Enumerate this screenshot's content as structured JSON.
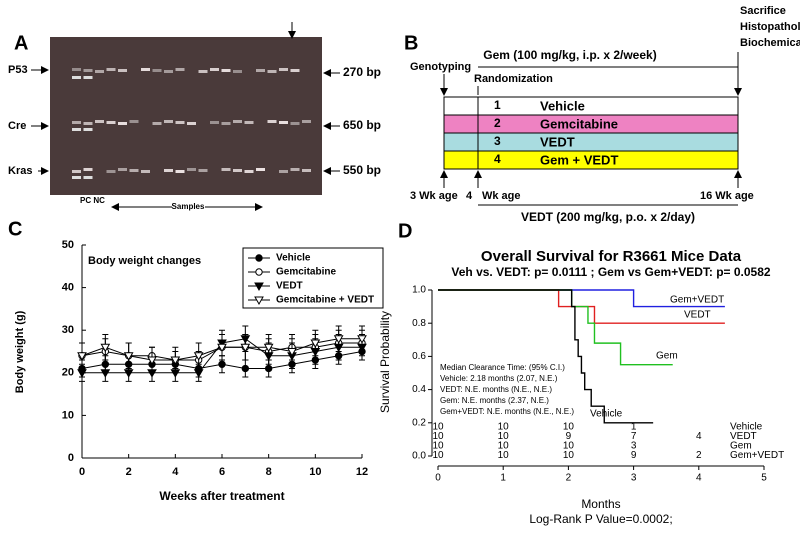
{
  "panel_a": {
    "letter": "A",
    "genes": [
      "P53",
      "Cre",
      "Kras"
    ],
    "sizes": [
      "270 bp",
      "650 bp",
      "550 bp"
    ],
    "controls": "PC NC",
    "samples": "Samples"
  },
  "panel_b": {
    "letter": "B",
    "endpoint": [
      "Sacrifice",
      "Histopathology &",
      "Biochemical analysis"
    ],
    "gem_dose": "Gem (100 mg/kg, i.p. x 2/week)",
    "genotyping": "Genotyping",
    "randomization": "Randomization",
    "groups": [
      {
        "number": "1",
        "name": "Vehicle"
      },
      {
        "number": "2",
        "name": "Gemcitabine"
      },
      {
        "number": "3",
        "name": "VEDT"
      },
      {
        "number": "4",
        "name": "Gem + VEDT"
      }
    ],
    "ages": [
      "3 Wk age",
      "4",
      "Wk age",
      "16 Wk age"
    ],
    "vedt_dose": "VEDT (200 mg/kg, p.o. x 2/day)"
  },
  "chart_data": [
    {
      "type": "line",
      "letter": "C",
      "title": "Body weight changes",
      "x_label": "Weeks after treatment",
      "y_label": "Body weight (g)",
      "x": [
        0,
        1,
        2,
        3,
        4,
        5,
        6,
        7,
        8,
        9,
        10,
        11,
        12
      ],
      "xlim": [
        0,
        12
      ],
      "xticks": [
        0,
        2,
        4,
        6,
        8,
        10,
        12
      ],
      "ylim": [
        0,
        50
      ],
      "yticks": [
        0,
        10,
        20,
        30,
        40,
        50
      ],
      "series": [
        {
          "name": "Vehicle",
          "marker": "circle",
          "filled": true,
          "values": [
            21,
            22,
            22,
            22,
            22,
            21,
            22,
            21,
            21,
            22,
            23,
            24,
            25
          ],
          "errors": [
            2,
            2,
            2,
            2,
            1,
            2,
            2,
            2,
            2,
            2,
            2,
            2,
            2
          ]
        },
        {
          "name": "Gemcitabine",
          "marker": "circle",
          "filled": false,
          "values": [
            24,
            25,
            24,
            24,
            23,
            23,
            26,
            26,
            25,
            26,
            26,
            27,
            27
          ],
          "errors": [
            3,
            3,
            3,
            2,
            2,
            2,
            3,
            3,
            3,
            3,
            3,
            3,
            3
          ]
        },
        {
          "name": "VEDT",
          "marker": "triangle-down",
          "filled": true,
          "values": [
            20,
            20,
            20,
            20,
            20,
            20,
            27,
            28,
            24,
            24,
            25,
            26,
            26
          ],
          "errors": [
            2,
            2,
            2,
            2,
            2,
            2,
            3,
            3,
            3,
            3,
            3,
            3,
            3
          ]
        },
        {
          "name": "Gemcitabine + VEDT",
          "marker": "triangle-down",
          "filled": false,
          "values": [
            24,
            26,
            24,
            23,
            23,
            24,
            26,
            26,
            26,
            25,
            27,
            28,
            28
          ],
          "errors": [
            3,
            3,
            3,
            3,
            3,
            3,
            3,
            3,
            3,
            3,
            3,
            3,
            3
          ]
        }
      ]
    },
    {
      "type": "step",
      "letter": "D",
      "title": "Overall Survival for R3661 Mice Data",
      "subtitle": "Veh vs. VEDT: p= 0.0111 ; Gem vs Gem+VEDT: p= 0.0582",
      "x_label": "Months",
      "y_label": "Survival Probability",
      "footer": "Log-Rank P Value=0.0002;",
      "xlim": [
        0,
        5
      ],
      "xticks": [
        0,
        1,
        2,
        3,
        4,
        5
      ],
      "ylim": [
        0,
        1
      ],
      "yticks": [
        {
          "value": 0,
          "label": "0.0"
        },
        0.2,
        0.4,
        0.6,
        0.8,
        {
          "value": 1,
          "label": "1.0"
        }
      ],
      "series": [
        {
          "name": "Gem+VEDT",
          "color": "#2020e0",
          "x": [
            0,
            3,
            3,
            4.4
          ],
          "values": [
            1,
            1,
            0.9,
            0.9
          ]
        },
        {
          "name": "VEDT",
          "color": "#e02020",
          "x": [
            0,
            1.85,
            1.85,
            2.4,
            2.4,
            4.4
          ],
          "values": [
            1,
            1,
            0.9,
            0.9,
            0.8,
            0.8
          ]
        },
        {
          "name": "Gem",
          "color": "#20c020",
          "x": [
            0,
            2.05,
            2.05,
            2.3,
            2.3,
            2.4,
            2.4,
            2.8,
            2.8,
            3.6
          ],
          "values": [
            1,
            1,
            0.9,
            0.9,
            0.8,
            0.8,
            0.68,
            0.68,
            0.55,
            0.55
          ]
        },
        {
          "name": "Vehicle",
          "color": "#000000",
          "x": [
            0,
            2.05,
            2.05,
            2.1,
            2.1,
            2.15,
            2.15,
            2.2,
            2.2,
            2.25,
            2.25,
            2.35,
            2.35,
            2.55,
            2.55,
            3.3
          ],
          "values": [
            1,
            1,
            0.9,
            0.9,
            0.7,
            0.7,
            0.6,
            0.6,
            0.5,
            0.5,
            0.4,
            0.4,
            0.3,
            0.3,
            0.2,
            0.2
          ]
        }
      ],
      "annotations": [
        "Median Clearance Time: (95% C.I.)",
        "Vehicle: 2.18 months (2.07, N.E.)",
        "VEDT: N.E. months (N.E., N.E.)",
        "Gem: N.E. months (2.37, N.E.)",
        "Gem+VEDT: N.E. months (N.E., N.E.)"
      ],
      "risk_table": [
        {
          "name": "Vehicle",
          "counts": [
            10,
            10,
            10,
            1
          ]
        },
        {
          "name": "VEDT",
          "counts": [
            10,
            10,
            9,
            7,
            4
          ]
        },
        {
          "name": "Gem",
          "counts": [
            10,
            10,
            10,
            3
          ]
        },
        {
          "name": "Gem+VEDT",
          "counts": [
            10,
            10,
            10,
            9,
            2
          ]
        }
      ]
    }
  ]
}
